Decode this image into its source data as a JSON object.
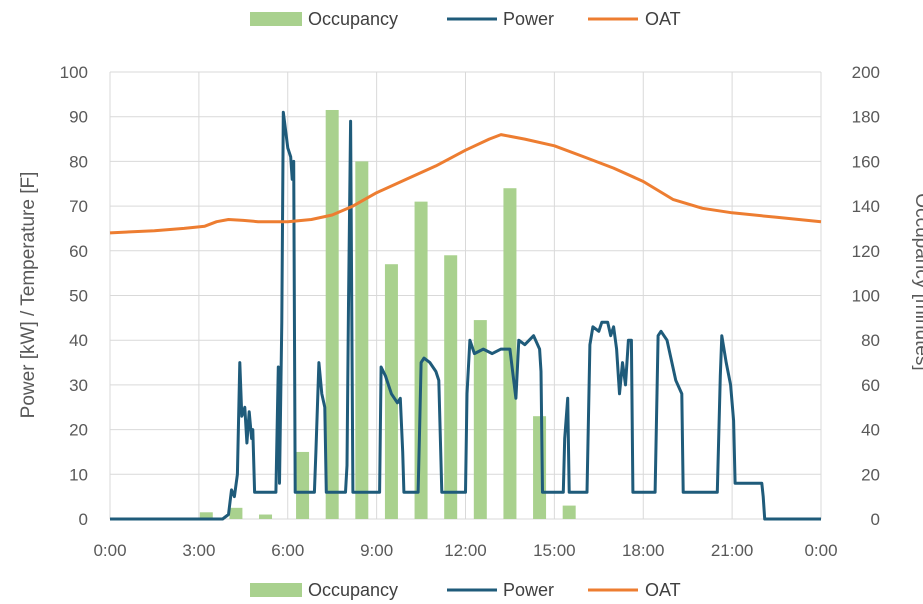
{
  "chart_data": {
    "type": "line",
    "x_ticks": [
      "0:00",
      "3:00",
      "6:00",
      "9:00",
      "12:00",
      "15:00",
      "18:00",
      "21:00",
      "0:00"
    ],
    "y_left": {
      "label": "Power [kW] / Temperature [F]",
      "ticks": [
        "0",
        "10",
        "20",
        "30",
        "40",
        "50",
        "60",
        "70",
        "80",
        "90",
        "100"
      ],
      "lim": [
        0,
        100
      ]
    },
    "y_right": {
      "label": "Occupancy [minutes]",
      "ticks": [
        "0",
        "20",
        "40",
        "60",
        "80",
        "100",
        "120",
        "140",
        "160",
        "180",
        "200"
      ],
      "lim": [
        0,
        200
      ]
    },
    "legend": {
      "placement": "top and bottom",
      "items": [
        {
          "name": "Occupancy",
          "color": "#a9d18e",
          "kind": "bar"
        },
        {
          "name": "Power",
          "color": "#1f5b7a",
          "kind": "line"
        },
        {
          "name": "OAT",
          "color": "#ed7d31",
          "kind": "line"
        }
      ]
    },
    "grid": true,
    "series": [
      {
        "name": "Occupancy",
        "axis": "right",
        "kind": "bar",
        "x_hours": [
          3.25,
          4.25,
          5.25,
          6.5,
          7.5,
          8.5,
          9.5,
          10.5,
          11.5,
          12.5,
          13.5,
          14.5,
          15.5
        ],
        "values": [
          3,
          5,
          2,
          30,
          183,
          160,
          114,
          142,
          118,
          89,
          148,
          46,
          6
        ]
      },
      {
        "name": "Power",
        "axis": "left",
        "kind": "line",
        "points": [
          [
            0,
            0
          ],
          [
            3.8,
            0
          ],
          [
            4.0,
            1
          ],
          [
            4.1,
            6.5
          ],
          [
            4.2,
            5
          ],
          [
            4.3,
            10
          ],
          [
            4.38,
            35
          ],
          [
            4.45,
            23
          ],
          [
            4.55,
            25
          ],
          [
            4.62,
            17
          ],
          [
            4.7,
            24
          ],
          [
            4.78,
            18
          ],
          [
            4.82,
            20
          ],
          [
            4.88,
            6
          ],
          [
            5.6,
            6
          ],
          [
            5.68,
            34
          ],
          [
            5.72,
            8
          ],
          [
            5.8,
            44
          ],
          [
            5.85,
            91
          ],
          [
            6.0,
            83
          ],
          [
            6.1,
            81
          ],
          [
            6.15,
            76
          ],
          [
            6.2,
            80
          ],
          [
            6.25,
            6
          ],
          [
            6.9,
            6
          ],
          [
            6.95,
            15
          ],
          [
            7.05,
            35
          ],
          [
            7.15,
            28
          ],
          [
            7.25,
            25
          ],
          [
            7.3,
            6
          ],
          [
            7.95,
            6
          ],
          [
            8.0,
            12
          ],
          [
            8.05,
            48
          ],
          [
            8.12,
            89
          ],
          [
            8.2,
            6
          ],
          [
            9.1,
            6
          ],
          [
            9.15,
            34
          ],
          [
            9.3,
            32
          ],
          [
            9.5,
            28
          ],
          [
            9.7,
            26
          ],
          [
            9.8,
            27
          ],
          [
            9.88,
            15
          ],
          [
            9.92,
            6
          ],
          [
            10.4,
            6
          ],
          [
            10.45,
            20
          ],
          [
            10.5,
            35
          ],
          [
            10.6,
            36
          ],
          [
            10.8,
            35
          ],
          [
            11.0,
            33
          ],
          [
            11.1,
            31
          ],
          [
            11.2,
            6
          ],
          [
            12.0,
            6
          ],
          [
            12.05,
            28
          ],
          [
            12.15,
            40
          ],
          [
            12.3,
            37
          ],
          [
            12.6,
            38
          ],
          [
            12.9,
            37
          ],
          [
            13.2,
            38
          ],
          [
            13.5,
            38
          ],
          [
            13.7,
            27
          ],
          [
            13.8,
            40
          ],
          [
            14.0,
            39
          ],
          [
            14.3,
            41
          ],
          [
            14.5,
            38
          ],
          [
            14.55,
            33
          ],
          [
            14.6,
            6
          ],
          [
            15.3,
            6
          ],
          [
            15.35,
            18
          ],
          [
            15.45,
            27
          ],
          [
            15.5,
            6
          ],
          [
            16.1,
            6
          ],
          [
            16.2,
            39
          ],
          [
            16.3,
            43
          ],
          [
            16.5,
            42
          ],
          [
            16.6,
            44
          ],
          [
            16.8,
            44
          ],
          [
            16.9,
            41
          ],
          [
            17.0,
            43
          ],
          [
            17.1,
            38
          ],
          [
            17.2,
            28
          ],
          [
            17.3,
            35
          ],
          [
            17.4,
            30
          ],
          [
            17.5,
            40
          ],
          [
            17.6,
            40
          ],
          [
            17.65,
            6
          ],
          [
            18.4,
            6
          ],
          [
            18.5,
            41
          ],
          [
            18.6,
            42
          ],
          [
            18.8,
            40
          ],
          [
            19.1,
            31
          ],
          [
            19.3,
            28
          ],
          [
            19.35,
            6
          ],
          [
            20.5,
            6
          ],
          [
            20.6,
            32
          ],
          [
            20.65,
            41
          ],
          [
            20.8,
            35
          ],
          [
            20.95,
            30
          ],
          [
            21.05,
            22
          ],
          [
            21.1,
            8
          ],
          [
            22.0,
            8
          ],
          [
            22.05,
            5
          ],
          [
            22.1,
            0
          ],
          [
            24,
            0
          ]
        ]
      },
      {
        "name": "OAT",
        "axis": "left",
        "kind": "line",
        "points": [
          [
            0,
            64
          ],
          [
            1.5,
            64.5
          ],
          [
            2.5,
            65
          ],
          [
            3.2,
            65.5
          ],
          [
            3.6,
            66.5
          ],
          [
            4.0,
            67
          ],
          [
            4.5,
            66.8
          ],
          [
            5.0,
            66.5
          ],
          [
            6.0,
            66.5
          ],
          [
            6.8,
            67
          ],
          [
            7.5,
            68
          ],
          [
            8.2,
            70
          ],
          [
            9.0,
            73
          ],
          [
            10.0,
            76
          ],
          [
            11.0,
            79
          ],
          [
            12.0,
            82.5
          ],
          [
            12.8,
            85
          ],
          [
            13.2,
            86
          ],
          [
            14.0,
            85
          ],
          [
            15.0,
            83.5
          ],
          [
            16.0,
            81
          ],
          [
            17.0,
            78.5
          ],
          [
            18.0,
            75.5
          ],
          [
            19.0,
            71.5
          ],
          [
            20.0,
            69.5
          ],
          [
            21.0,
            68.5
          ],
          [
            22.5,
            67.5
          ],
          [
            24,
            66.5
          ]
        ]
      }
    ]
  }
}
